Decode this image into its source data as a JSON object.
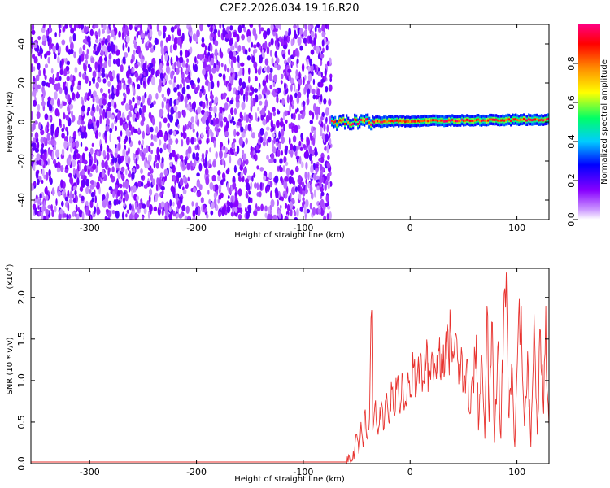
{
  "chart_data": [
    {
      "type": "heatmap",
      "title": "C2E2.2026.034.19.16.R20",
      "xlabel": "Height of straight line (km)",
      "ylabel": "Frequency (Hz)",
      "xlim": [
        -355,
        130
      ],
      "ylim": [
        -50,
        50
      ],
      "xticks": [
        -300,
        -200,
        -100,
        0,
        100
      ],
      "xtick_labels": [
        "-300",
        "-200",
        "-100",
        "0",
        "100"
      ],
      "yticks": [
        -40,
        -20,
        0,
        20,
        40
      ],
      "ytick_labels": [
        "-40",
        "-20",
        "0",
        "20",
        "40"
      ],
      "regions": [
        {
          "x_range": [
            -355,
            -74
          ],
          "y_range": [
            -50,
            50
          ],
          "description_level": "broadband noise, amplitude ~0.1-0.2"
        },
        {
          "x_range": [
            -74,
            130
          ],
          "y_range": [
            -3,
            3
          ],
          "description_level": "narrow trace near 0 Hz, amplitude ~0.5-1.0"
        }
      ],
      "colorbar": {
        "label": "Normalized spectral amplitude",
        "ticks": [
          0.0,
          0.2,
          0.4,
          0.6,
          0.8
        ],
        "tick_labels": [
          "0.0",
          "0.2",
          "0.4",
          "0.6",
          "0.8"
        ],
        "range": [
          0,
          1
        ],
        "colors": [
          "#ffffff",
          "#cc99ff",
          "#8800ff",
          "#0000ff",
          "#00ccff",
          "#00ff66",
          "#ffff00",
          "#ff8800",
          "#ff0000",
          "#ff0080"
        ]
      }
    },
    {
      "type": "line",
      "xlabel": "Height of straight line (km)",
      "ylabel": "SNR (10 * v/v)",
      "multiplier_label": "(x10",
      "multiplier_exp": "4",
      "xlim": [
        -355,
        130
      ],
      "ylim": [
        0,
        2.35
      ],
      "xticks": [
        -300,
        -200,
        -100,
        0,
        100
      ],
      "xtick_labels": [
        "-300",
        "-200",
        "-100",
        "0",
        "100"
      ],
      "yticks": [
        0.0,
        0.5,
        1.0,
        1.5,
        2.0
      ],
      "ytick_labels": [
        "0.0",
        "0.5",
        "1.0",
        "1.5",
        "2.0"
      ],
      "series": [
        {
          "color": "#e8322e",
          "points": [
            [
              -355,
              0.02
            ],
            [
              -250,
              0.02
            ],
            [
              -150,
              0.02
            ],
            [
              -100,
              0.02
            ],
            [
              -60,
              0.02
            ],
            [
              -55,
              0.05
            ],
            [
              -52,
              0.15
            ],
            [
              -50,
              0.35
            ],
            [
              -48,
              0.12
            ],
            [
              -46,
              0.5
            ],
            [
              -44,
              0.2
            ],
            [
              -42,
              0.65
            ],
            [
              -40,
              0.3
            ],
            [
              -38,
              0.55
            ],
            [
              -36,
              1.85
            ],
            [
              -35,
              0.4
            ],
            [
              -33,
              0.7
            ],
            [
              -30,
              0.35
            ],
            [
              -27,
              0.75
            ],
            [
              -25,
              0.4
            ],
            [
              -22,
              0.85
            ],
            [
              -20,
              0.5
            ],
            [
              -17,
              0.9
            ],
            [
              -15,
              0.6
            ],
            [
              -12,
              1.0
            ],
            [
              -10,
              0.65
            ],
            [
              -7,
              1.05
            ],
            [
              -5,
              0.7
            ],
            [
              -2,
              1.1
            ],
            [
              0,
              0.8
            ],
            [
              3,
              1.15
            ],
            [
              6,
              0.9
            ],
            [
              9,
              1.2
            ],
            [
              12,
              1.0
            ],
            [
              15,
              1.25
            ],
            [
              18,
              1.05
            ],
            [
              21,
              1.3
            ],
            [
              24,
              1.1
            ],
            [
              27,
              1.35
            ],
            [
              30,
              1.25
            ],
            [
              33,
              1.45
            ],
            [
              36,
              1.3
            ],
            [
              38,
              1.6
            ],
            [
              40,
              1.35
            ],
            [
              42,
              1.5
            ],
            [
              45,
              1.2
            ],
            [
              48,
              1.4
            ],
            [
              50,
              0.9
            ],
            [
              53,
              1.25
            ],
            [
              56,
              0.6
            ],
            [
              59,
              1.0
            ],
            [
              62,
              1.55
            ],
            [
              64,
              0.4
            ],
            [
              67,
              1.3
            ],
            [
              70,
              0.3
            ],
            [
              72,
              1.9
            ],
            [
              74,
              0.5
            ],
            [
              77,
              1.7
            ],
            [
              79,
              0.25
            ],
            [
              82,
              1.4
            ],
            [
              85,
              0.3
            ],
            [
              88,
              2.05
            ],
            [
              90,
              2.3
            ],
            [
              92,
              0.6
            ],
            [
              95,
              1.2
            ],
            [
              98,
              0.2
            ],
            [
              101,
              1.5
            ],
            [
              104,
              1.9
            ],
            [
              107,
              0.45
            ],
            [
              110,
              1.35
            ],
            [
              113,
              0.2
            ],
            [
              116,
              1.8
            ],
            [
              119,
              0.35
            ],
            [
              122,
              1.6
            ],
            [
              125,
              0.6
            ],
            [
              127,
              1.9
            ],
            [
              128,
              0.9
            ],
            [
              130,
              0.45
            ]
          ]
        }
      ]
    }
  ]
}
